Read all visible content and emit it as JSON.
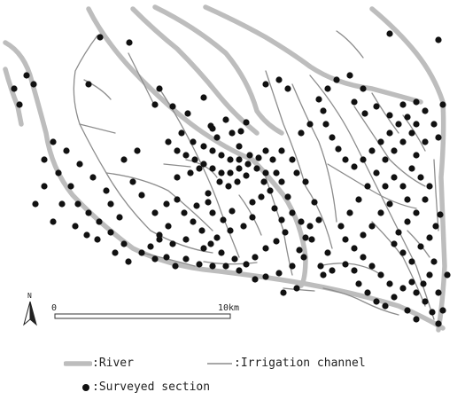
{
  "map": {
    "north_label": "N",
    "scale": {
      "start_label": "0",
      "end_label": "10km"
    }
  },
  "legend": {
    "river_label": ":River",
    "channel_label": ":Irrigation channel",
    "site_label": ":Surveyed section"
  },
  "colors": {
    "river": "#bdbdbd",
    "channel": "#8c8c8c",
    "site": "#111111"
  }
}
